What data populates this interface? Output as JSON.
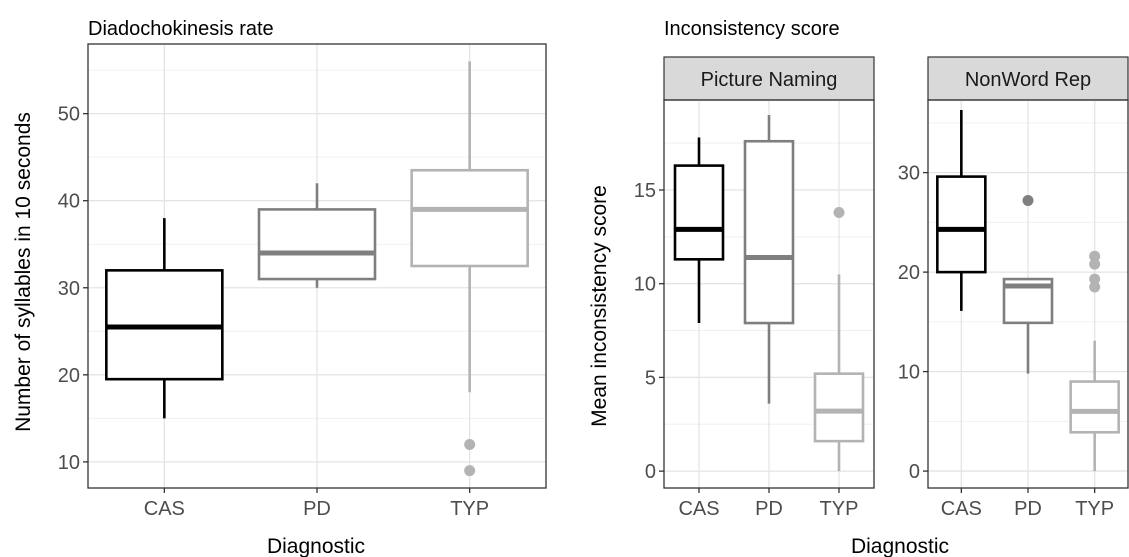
{
  "left_panel": {
    "title": "Diadochokinesis rate",
    "xlabel": "Diagnostic",
    "ylabel": "Number of syllables in 10 seconds"
  },
  "right_panel": {
    "title": "Inconsistency score",
    "xlabel": "Diagnostic",
    "ylabel": "Mean inconsistency score"
  },
  "colors": {
    "CAS": "#000000",
    "PD": "#7f7f7f",
    "TYP": "#b3b3b3"
  },
  "chart_data": [
    {
      "type": "box",
      "title": "Diadochokinesis rate",
      "xlabel": "Diagnostic",
      "ylabel": "Number of syllables in 10 seconds",
      "categories": [
        "CAS",
        "PD",
        "TYP"
      ],
      "ylim": [
        7,
        58
      ],
      "yticks": [
        10,
        20,
        30,
        40,
        50
      ],
      "grid": true,
      "boxes": [
        {
          "category": "CAS",
          "whisker_low": 15,
          "q1": 19.5,
          "median": 25.5,
          "q3": 32,
          "whisker_high": 38,
          "outliers": []
        },
        {
          "category": "PD",
          "whisker_low": 30,
          "q1": 31,
          "median": 34,
          "q3": 39,
          "whisker_high": 42,
          "outliers": []
        },
        {
          "category": "TYP",
          "whisker_low": 18,
          "q1": 32.5,
          "median": 39,
          "q3": 43.5,
          "whisker_high": 56,
          "outliers": [
            12,
            9
          ]
        }
      ]
    },
    {
      "type": "box",
      "facet": "Picture Naming",
      "xlabel": "Diagnostic",
      "ylabel": "Mean inconsistency score",
      "categories": [
        "CAS",
        "PD",
        "TYP"
      ],
      "ylim": [
        -0.9,
        19.8
      ],
      "yticks": [
        0,
        5,
        10,
        15
      ],
      "grid": true,
      "boxes": [
        {
          "category": "CAS",
          "whisker_low": 7.9,
          "q1": 11.3,
          "median": 12.9,
          "q3": 16.3,
          "whisker_high": 17.8,
          "outliers": []
        },
        {
          "category": "PD",
          "whisker_low": 3.6,
          "q1": 7.9,
          "median": 11.4,
          "q3": 17.6,
          "whisker_high": 19.0,
          "outliers": []
        },
        {
          "category": "TYP",
          "whisker_low": 0,
          "q1": 1.6,
          "median": 3.2,
          "q3": 5.2,
          "whisker_high": 10.5,
          "outliers": [
            13.8
          ]
        }
      ]
    },
    {
      "type": "box",
      "facet": "NonWord Rep",
      "xlabel": "Diagnostic",
      "ylabel": "Mean inconsistency score",
      "categories": [
        "CAS",
        "PD",
        "TYP"
      ],
      "ylim": [
        -1.7,
        37.3
      ],
      "yticks": [
        0,
        10,
        20,
        30
      ],
      "grid": true,
      "boxes": [
        {
          "category": "CAS",
          "whisker_low": 16.1,
          "q1": 20.0,
          "median": 24.3,
          "q3": 29.6,
          "whisker_high": 36.3,
          "outliers": []
        },
        {
          "category": "PD",
          "whisker_low": 9.8,
          "q1": 14.9,
          "median": 18.6,
          "q3": 19.3,
          "whisker_high": 19.3,
          "outliers": [
            27.2
          ]
        },
        {
          "category": "TYP",
          "whisker_low": 0,
          "q1": 3.9,
          "median": 6.0,
          "q3": 9.0,
          "whisker_high": 13.1,
          "outliers": [
            21.6,
            20.8,
            19.3,
            18.5
          ]
        }
      ]
    }
  ]
}
